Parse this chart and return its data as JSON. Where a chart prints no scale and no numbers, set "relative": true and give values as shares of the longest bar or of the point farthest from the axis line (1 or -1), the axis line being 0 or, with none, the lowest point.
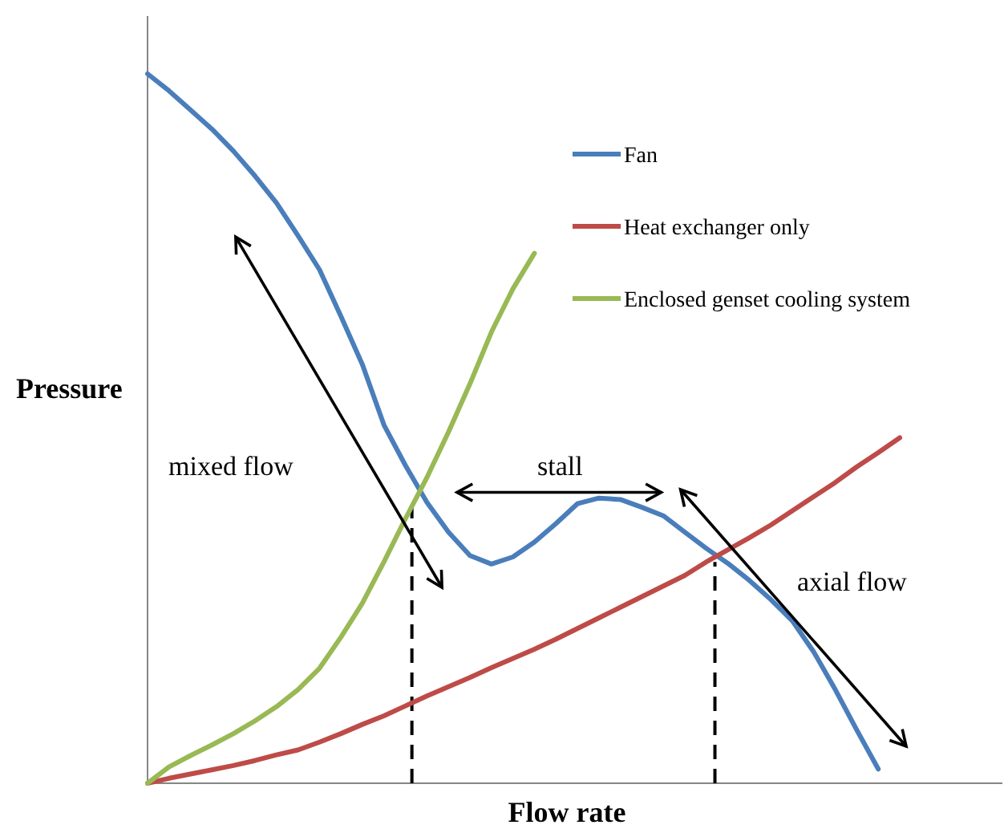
{
  "chart_data": {
    "type": "line",
    "relative": true,
    "xlabel": "Flow rate",
    "ylabel": "Pressure",
    "legend": "top right",
    "categories": [
      null,
      null,
      null,
      null,
      null,
      null,
      null,
      null,
      null,
      null,
      null,
      null,
      null,
      null,
      null,
      null,
      null,
      null,
      null,
      null,
      null,
      null,
      null,
      null,
      null,
      null,
      null,
      null,
      null,
      null,
      null,
      null,
      null,
      null,
      null,
      null
    ],
    "series": [
      {
        "name": "Fan",
        "color": "#4a7ebb",
        "values": [
          1.0,
          0.976,
          0.949,
          0.922,
          0.891,
          0.856,
          0.818,
          0.772,
          0.724,
          0.658,
          0.59,
          0.505,
          0.448,
          0.396,
          0.354,
          0.321,
          0.309,
          0.319,
          0.34,
          0.366,
          0.394,
          0.402,
          0.4,
          0.389,
          0.377,
          0.354,
          0.331,
          0.31,
          0.286,
          0.259,
          0.229,
          0.185,
          0.132,
          0.075,
          0.02,
          null
        ]
      },
      {
        "name": "Heat exchanger only",
        "color": "#be4b48",
        "values": [
          0,
          0.007,
          0.013,
          0.019,
          0.025,
          0.032,
          0.04,
          0.047,
          0.058,
          0.07,
          0.083,
          0.095,
          0.109,
          0.123,
          0.136,
          0.149,
          0.163,
          0.176,
          0.189,
          0.203,
          0.218,
          0.233,
          0.248,
          0.263,
          0.278,
          0.293,
          0.312,
          0.329,
          0.346,
          0.364,
          0.384,
          0.404,
          0.424,
          0.446,
          0.466,
          0.487
        ]
      },
      {
        "name": "Enclosed genset cooling system",
        "color": "#98b954",
        "values": [
          0,
          0.023,
          0.039,
          0.054,
          0.07,
          0.088,
          0.108,
          0.132,
          0.162,
          0.206,
          0.254,
          0.312,
          0.373,
          0.431,
          0.495,
          0.563,
          0.636,
          0.697,
          0.747,
          null,
          null,
          null,
          null,
          null,
          null,
          null,
          null,
          null,
          null,
          null,
          null,
          null,
          null,
          null,
          null,
          null
        ]
      }
    ],
    "annotations": [
      "mixed flow",
      "stall",
      "axial flow"
    ]
  }
}
